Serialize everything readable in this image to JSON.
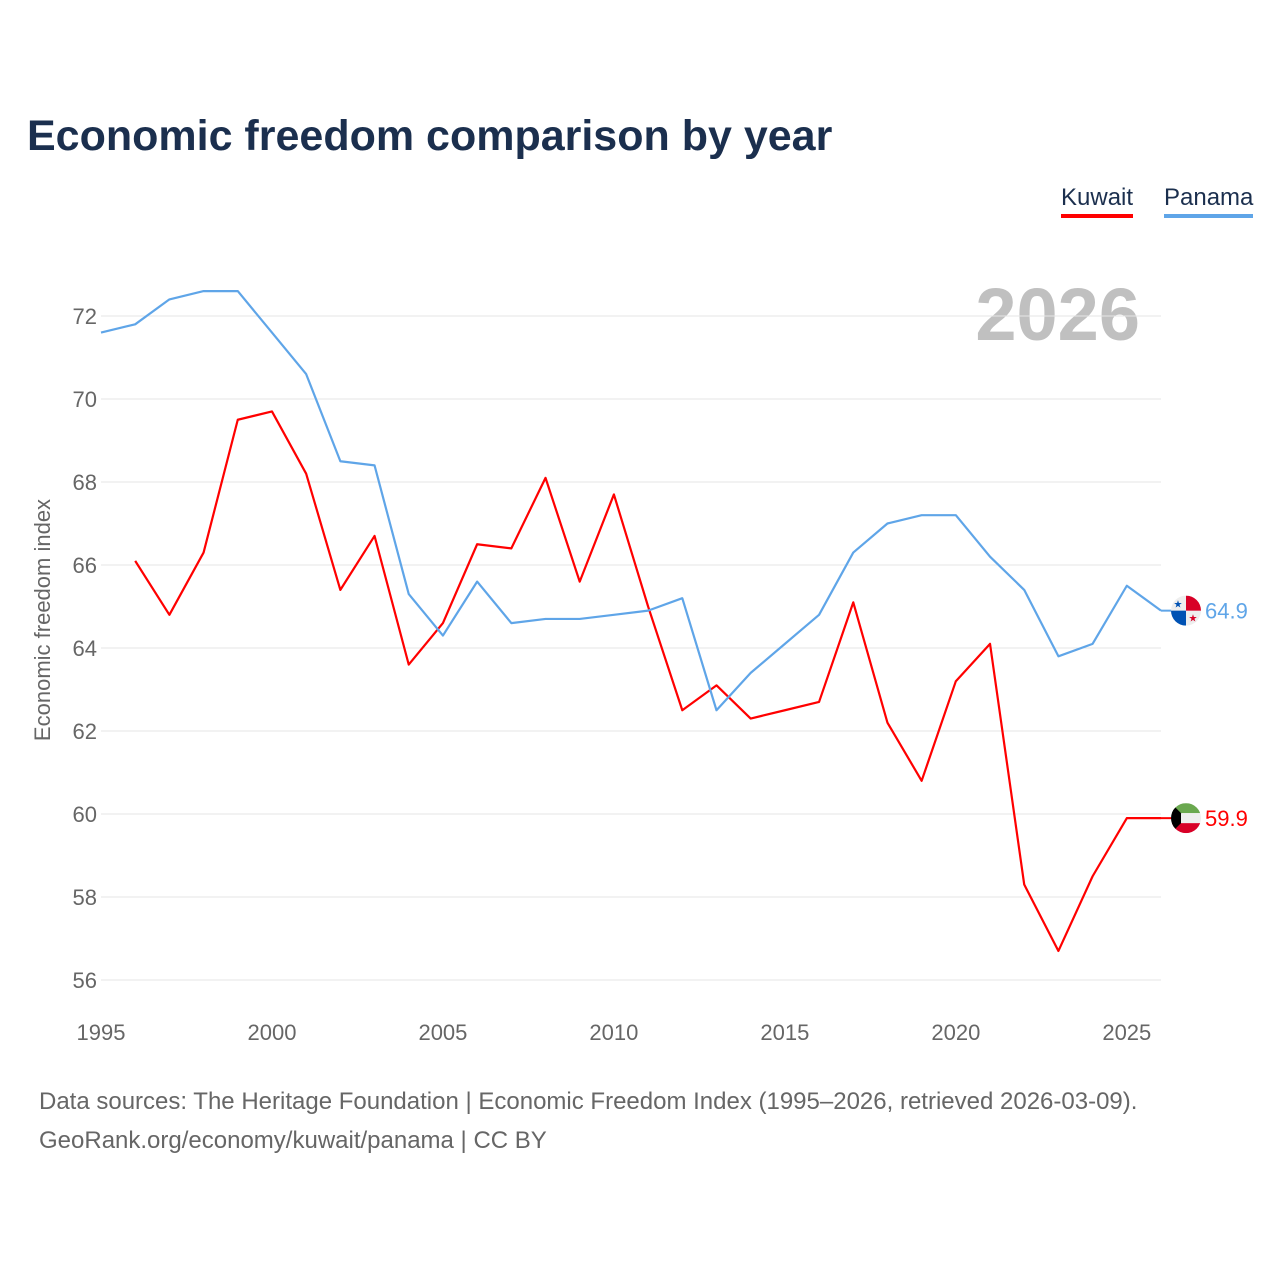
{
  "chart_data": {
    "type": "line",
    "title": "Economic freedom comparison by year",
    "xlabel": "",
    "ylabel": "Economic freedom index",
    "xlim": [
      1995,
      2026
    ],
    "ylim": [
      56,
      72
    ],
    "x_ticks": [
      "1995",
      "2000",
      "2005",
      "2010",
      "2015",
      "2020",
      "2025"
    ],
    "y_ticks": [
      "56",
      "58",
      "60",
      "62",
      "64",
      "66",
      "68",
      "70",
      "72"
    ],
    "grid": true,
    "legend_position": "top-right",
    "year_watermark": "2026",
    "series": [
      {
        "name": "Kuwait",
        "color": "#ff0000",
        "end_label": "59.9",
        "x": [
          1996,
          1997,
          1998,
          1999,
          2000,
          2001,
          2002,
          2003,
          2004,
          2005,
          2006,
          2007,
          2008,
          2009,
          2010,
          2011,
          2012,
          2013,
          2014,
          2015,
          2016,
          2017,
          2018,
          2019,
          2020,
          2021,
          2022,
          2023,
          2024,
          2025,
          2026
        ],
        "values": [
          66.1,
          64.8,
          66.3,
          69.5,
          69.7,
          68.2,
          65.4,
          66.7,
          63.6,
          64.6,
          66.5,
          66.4,
          68.1,
          65.6,
          67.7,
          65.0,
          62.5,
          63.1,
          62.3,
          62.5,
          62.7,
          65.1,
          62.2,
          60.8,
          63.2,
          64.1,
          58.3,
          56.7,
          58.5,
          59.9,
          59.9
        ]
      },
      {
        "name": "Panama",
        "color": "#5fa5e8",
        "end_label": "64.9",
        "x": [
          1995,
          1996,
          1997,
          1998,
          1999,
          2000,
          2001,
          2002,
          2003,
          2004,
          2005,
          2006,
          2007,
          2008,
          2009,
          2010,
          2011,
          2012,
          2013,
          2014,
          2015,
          2016,
          2017,
          2018,
          2019,
          2020,
          2021,
          2022,
          2023,
          2024,
          2025,
          2026
        ],
        "values": [
          71.6,
          71.8,
          72.4,
          72.6,
          72.6,
          71.6,
          70.6,
          68.5,
          68.4,
          65.3,
          64.3,
          65.6,
          64.6,
          64.7,
          64.7,
          64.8,
          64.9,
          65.2,
          62.5,
          63.4,
          64.1,
          64.8,
          66.3,
          67.0,
          67.2,
          67.2,
          66.2,
          65.4,
          63.8,
          64.1,
          65.5,
          64.9
        ]
      }
    ]
  },
  "footer": {
    "line1": "Data sources: The Heritage Foundation | Economic Freedom Index (1995–2026, retrieved 2026-03-09).",
    "line2": "GeoRank.org/economy/kuwait/panama | CC BY"
  }
}
